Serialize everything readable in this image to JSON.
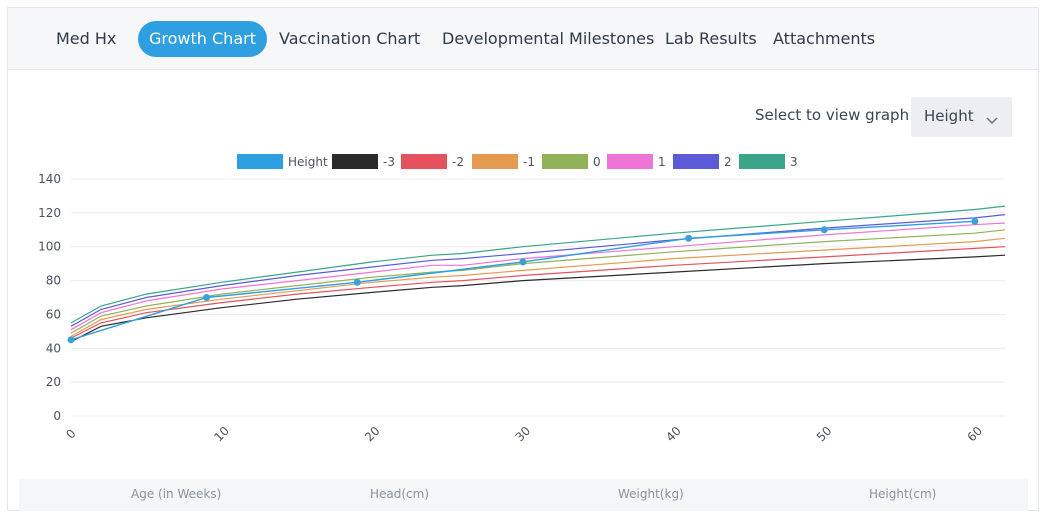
{
  "tabs": [
    {
      "label": "Med Hx",
      "active": false
    },
    {
      "label": "Growth Chart",
      "active": true
    },
    {
      "label": "Vaccination Chart",
      "active": false
    },
    {
      "label": "Developmental Milestones",
      "active": false
    },
    {
      "label": "Lab Results",
      "active": false
    },
    {
      "label": "Attachments",
      "active": false
    }
  ],
  "graph_select": {
    "label": "Select to view graph:",
    "value": "Height",
    "icon": "chevron-down-icon"
  },
  "chart_data": {
    "type": "line",
    "title": "",
    "xlabel": "",
    "ylabel": "",
    "xlim": [
      0,
      62
    ],
    "ylim": [
      0,
      140
    ],
    "x_ticks": [
      "0",
      "10",
      "20",
      "30",
      "40",
      "50",
      "60"
    ],
    "y_ticks": [
      "0",
      "20",
      "40",
      "60",
      "80",
      "100",
      "120",
      "140"
    ],
    "grid": "horizontal",
    "legend_position": "top-center",
    "measured": {
      "name": "Height",
      "color": "#2e9fe0",
      "x": [
        0,
        9,
        19,
        30,
        41,
        50,
        60
      ],
      "y": [
        45,
        70,
        79,
        91,
        105,
        110,
        115
      ]
    },
    "series": [
      {
        "name": "-3",
        "color": "#2b2b2b",
        "x": [
          0,
          2,
          5,
          10,
          15,
          20,
          24,
          26,
          30,
          40,
          50,
          60,
          62
        ],
        "y": [
          44,
          53,
          58,
          64,
          69,
          73,
          76,
          77,
          80,
          85,
          90,
          94,
          95
        ]
      },
      {
        "name": "-2",
        "color": "#e5515c",
        "x": [
          0,
          2,
          5,
          10,
          15,
          20,
          24,
          26,
          30,
          40,
          50,
          60,
          62
        ],
        "y": [
          46,
          55,
          61,
          67,
          72,
          76,
          79,
          80,
          83,
          89,
          94,
          99,
          100
        ]
      },
      {
        "name": "-1",
        "color": "#e59a52",
        "x": [
          0,
          2,
          5,
          10,
          15,
          20,
          24,
          26,
          30,
          40,
          50,
          60,
          62
        ],
        "y": [
          47,
          57,
          63,
          69,
          74,
          79,
          82,
          83,
          86,
          93,
          98,
          103,
          105
        ]
      },
      {
        "name": "0",
        "color": "#8fb25a",
        "x": [
          0,
          2,
          5,
          10,
          15,
          20,
          24,
          26,
          30,
          40,
          50,
          60,
          62
        ],
        "y": [
          49,
          59,
          65,
          72,
          77,
          82,
          85,
          86,
          90,
          97,
          103,
          108,
          110
        ]
      },
      {
        "name": "1",
        "color": "#ee74d6",
        "x": [
          0,
          2,
          5,
          10,
          15,
          20,
          24,
          26,
          30,
          40,
          50,
          60,
          62
        ],
        "y": [
          51,
          61,
          68,
          75,
          80,
          85,
          89,
          89,
          93,
          100,
          107,
          113,
          114
        ]
      },
      {
        "name": "2",
        "color": "#5c5bd8",
        "x": [
          0,
          2,
          5,
          10,
          15,
          20,
          24,
          26,
          30,
          40,
          50,
          60,
          62
        ],
        "y": [
          53,
          63,
          70,
          77,
          83,
          88,
          92,
          93,
          96,
          104,
          111,
          117,
          119
        ]
      },
      {
        "name": "3",
        "color": "#3aa58a",
        "x": [
          0,
          2,
          5,
          10,
          15,
          20,
          24,
          26,
          30,
          40,
          50,
          60,
          62
        ],
        "y": [
          55,
          65,
          72,
          79,
          85,
          91,
          95,
          96,
          100,
          108,
          115,
          122,
          124
        ]
      }
    ]
  },
  "footer_columns": [
    "Age (in Weeks)",
    "Head(cm)",
    "Weight(kg)",
    "Height(cm)"
  ]
}
